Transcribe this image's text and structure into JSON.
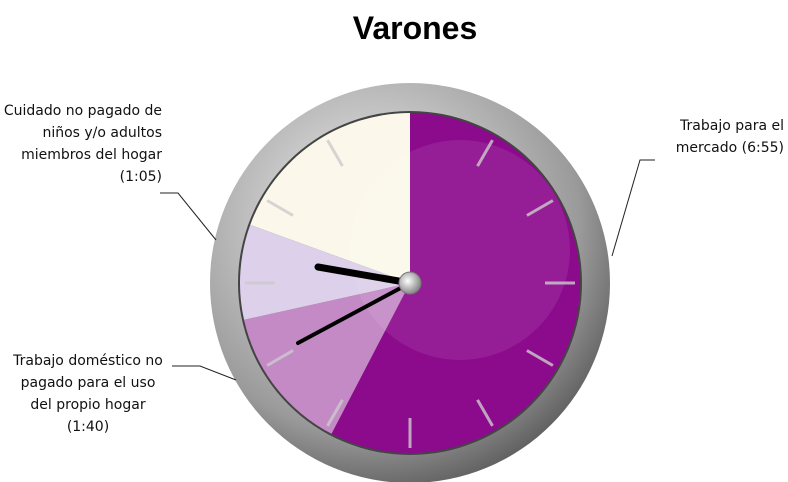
{
  "chart_data": {
    "type": "pie",
    "title": "Varones",
    "categories": [
      "Trabajo para el mercado (6:55)",
      "Trabajo doméstico no pagado para el uso del propio hogar (1:40)",
      "Cuidado no pagado de niños y/o adultos miembros del hogar (1:05)",
      null
    ],
    "values": [
      415,
      100,
      65,
      140
    ],
    "colors": [
      "#8c0a8c",
      "#c48ac6",
      "#ddd0ea",
      "#fbf8eb"
    ]
  }
}
